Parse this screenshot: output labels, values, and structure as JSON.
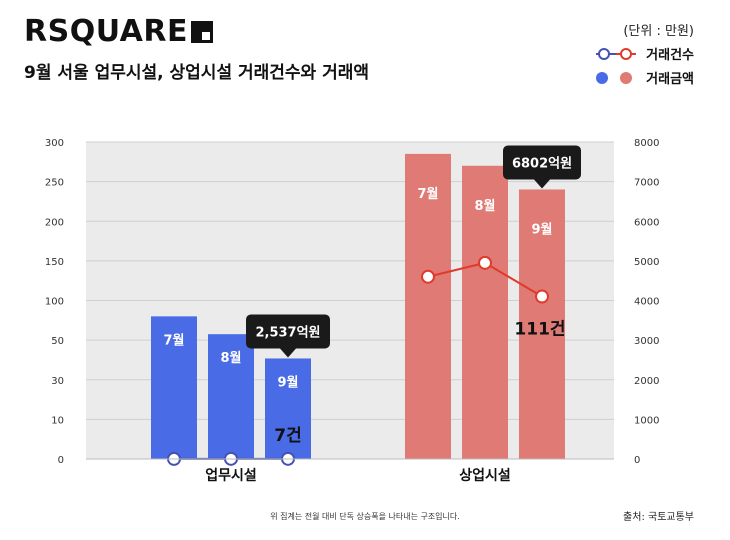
{
  "header": {
    "brand": "RSQUARE",
    "subtitle": "9월 서울 업무시설, 상업시설 거래건수와 거래액",
    "unit": "(단위 : 만원)"
  },
  "legend": {
    "count_label": "거래건수",
    "amount_label": "거래금액"
  },
  "footer": {
    "note": "위 집계는 전월 대비 단독 상승폭을 나타내는 구조입니다.",
    "source": "출처: 국토교통부"
  },
  "colors": {
    "office_bar": "#4a6be6",
    "office_line": "#4551b3",
    "retail_bar": "#e07a74",
    "retail_line": "#e03a2c",
    "plot_bg": "#ebebeb",
    "callout": "#1a1a1a"
  },
  "chart_data": {
    "type": "bar",
    "categories": [
      "업무시설",
      "상업시설"
    ],
    "left_axis": {
      "ticks": [
        "300",
        "250",
        "200",
        "150",
        "100",
        "50",
        "30",
        "10",
        "0"
      ]
    },
    "right_axis": {
      "ticks": [
        "8000",
        "7000",
        "6000",
        "5000",
        "4000",
        "3000",
        "2000",
        "1000",
        "0"
      ]
    },
    "grid": true,
    "groups": [
      {
        "category": "업무시설",
        "months": [
          "7월",
          "8월",
          "9월"
        ],
        "amount_axis_level": [
          3600,
          3150,
          2537
        ],
        "count_axis_level": [
          2,
          4,
          4
        ],
        "callout": "2,537억원",
        "count_label": "7건"
      },
      {
        "category": "상업시설",
        "months": [
          "7월",
          "8월",
          "9월"
        ],
        "amount_axis_level": [
          7700,
          7400,
          6802
        ],
        "count_axis_level": [
          4600,
          4950,
          4100
        ],
        "callout": "6802억원",
        "count_label": "111건"
      }
    ]
  }
}
